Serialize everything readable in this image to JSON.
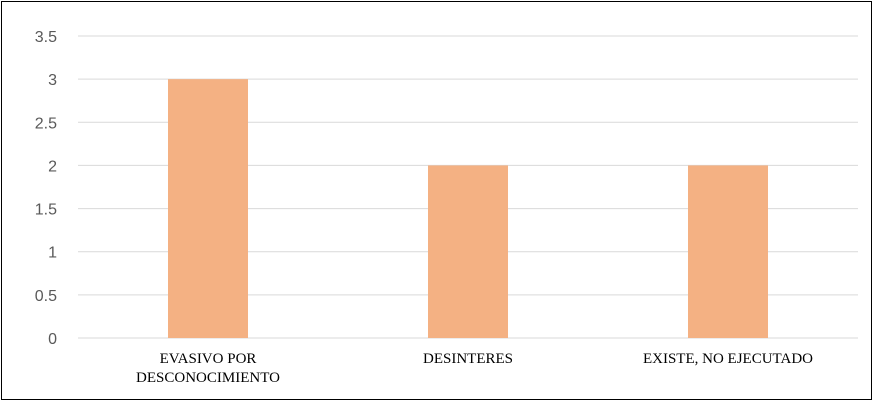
{
  "chart_data": {
    "type": "bar",
    "categories": [
      [
        "EVASIVO POR",
        "DESCONOCIMIENTO"
      ],
      [
        "DESINTERES"
      ],
      [
        "EXISTE, NO EJECUTADO"
      ]
    ],
    "values": [
      3,
      2,
      2
    ],
    "yticks": [
      "0",
      "0.5",
      "1",
      "1.5",
      "2",
      "2.5",
      "3",
      "3.5"
    ],
    "ylim": [
      0,
      3.5
    ],
    "grid": true,
    "legend": "none",
    "title": "",
    "xlabel": "",
    "ylabel": "",
    "bar_color": "#F4B183",
    "grid_color": "#D9D9D9"
  }
}
